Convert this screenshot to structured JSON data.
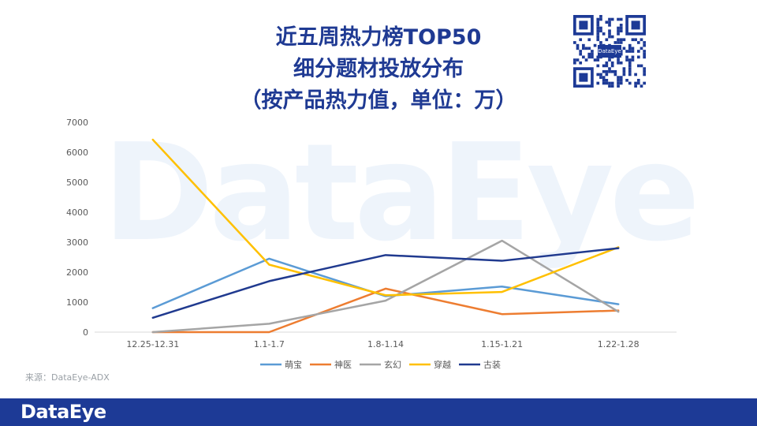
{
  "header": {
    "title_lines": [
      "近五周热力榜TOP50",
      "细分题材投放分布",
      "（按产品热力值，单位：万）"
    ]
  },
  "qr": {
    "logo_text": "DataEye"
  },
  "watermark": {
    "text": "DataEye"
  },
  "source": {
    "text": "来源：DataEye-ADX"
  },
  "footer": {
    "logo_text": "DataEye",
    "color": "#1d3a96"
  },
  "chart_data": {
    "type": "line",
    "categories": [
      "12.25-12.31",
      "1.1-1.7",
      "1.8-1.14",
      "1.15-1.21",
      "1.22-1.28"
    ],
    "ylim": [
      0,
      7000
    ],
    "yticks": [
      0,
      1000,
      2000,
      3000,
      4000,
      5000,
      6000,
      7000
    ],
    "legend_position": "bottom",
    "grid": false,
    "series": [
      {
        "name": "萌宝",
        "color": "#5b9bd5",
        "values": [
          800,
          2450,
          1200,
          1520,
          930
        ]
      },
      {
        "name": "神医",
        "color": "#ed7d31",
        "values": [
          0,
          0,
          1450,
          600,
          720
        ]
      },
      {
        "name": "玄幻",
        "color": "#a5a5a5",
        "values": [
          0,
          280,
          1050,
          3050,
          680
        ]
      },
      {
        "name": "穿越",
        "color": "#ffc000",
        "values": [
          6420,
          2250,
          1230,
          1340,
          2830
        ]
      },
      {
        "name": "古装",
        "color": "#203a8f",
        "values": [
          480,
          1700,
          2570,
          2380,
          2800
        ]
      }
    ]
  }
}
